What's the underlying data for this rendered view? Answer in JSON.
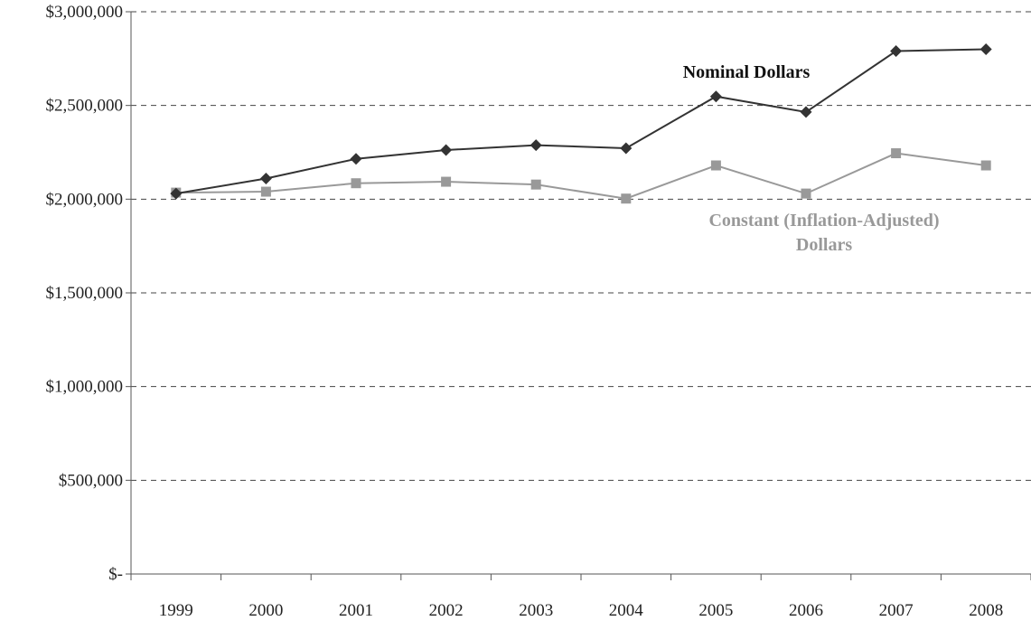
{
  "chart_data": {
    "type": "line",
    "categories": [
      "1999",
      "2000",
      "2001",
      "2002",
      "2003",
      "2004",
      "2005",
      "2006",
      "2007",
      "2008"
    ],
    "y_ticks": [
      0,
      500000,
      1000000,
      1500000,
      2000000,
      2500000,
      3000000
    ],
    "y_tick_labels": [
      "$-",
      "$500,000",
      "$1,000,000",
      "$1,500,000",
      "$2,000,000",
      "$2,500,000",
      "$3,000,000"
    ],
    "ylim": [
      0,
      3000000
    ],
    "grid": "horizontal dashed",
    "series": [
      {
        "name": "Nominal Dollars",
        "marker": "diamond",
        "color": "#333333",
        "values": [
          2030000,
          2110000,
          2215000,
          2262000,
          2288000,
          2272000,
          2548000,
          2465000,
          2790000,
          2800000
        ]
      },
      {
        "name": "Constant (Inflation-Adjusted) Dollars",
        "label_lines": [
          "Constant (Inflation-Adjusted)",
          "Dollars"
        ],
        "marker": "square",
        "color": "#999999",
        "values": [
          2035000,
          2040000,
          2085000,
          2093000,
          2078000,
          2003000,
          2180000,
          2030000,
          2245000,
          2180000
        ]
      }
    ]
  }
}
